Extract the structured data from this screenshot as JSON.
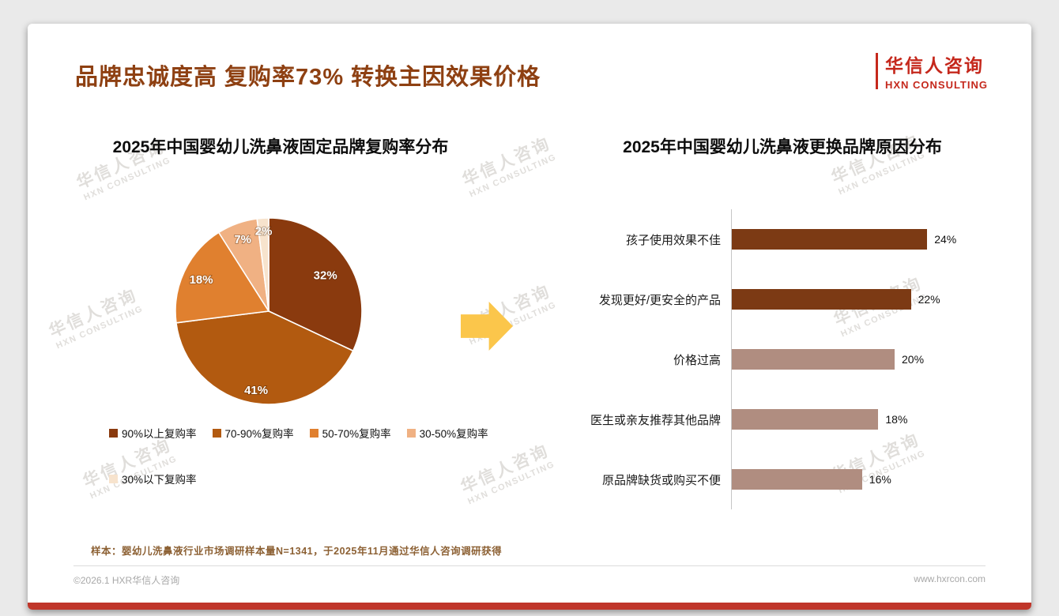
{
  "page": {
    "title": "品牌忠诚度高 复购率73% 转换主因效果价格"
  },
  "logo": {
    "name": "华信人咨询",
    "subtitle": "HXN CONSULTING"
  },
  "watermark": {
    "line1": "华信人咨询",
    "line2": "HXN CONSULTING"
  },
  "chart_data": [
    {
      "type": "pie",
      "title": "2025年中国婴幼儿洗鼻液固定品牌复购率分布",
      "labels": [
        "90%以上复购率",
        "70-90%复购率",
        "50-70%复购率",
        "30-50%复购率",
        "30%以下复购率"
      ],
      "values": [
        32,
        41,
        18,
        7,
        2
      ],
      "data_labels": [
        "32%",
        "41%",
        "18%",
        "7%",
        "2%"
      ],
      "colors": [
        "#8a3a0e",
        "#b25a10",
        "#e0802f",
        "#f0b183",
        "#f7e3cd"
      ],
      "legend_position": "bottom",
      "start_angle": "top",
      "direction": "clockwise"
    },
    {
      "type": "bar",
      "orientation": "horizontal",
      "title": "2025年中国婴幼儿洗鼻液更换品牌原因分布",
      "categories": [
        "孩子使用效果不佳",
        "发现更好/更安全的产品",
        "价格过高",
        "医生或亲友推荐其他品牌",
        "原品牌缺货或购买不便"
      ],
      "values": [
        24,
        22,
        20,
        18,
        16
      ],
      "value_labels": [
        "24%",
        "22%",
        "20%",
        "18%",
        "16%"
      ],
      "colors": [
        "#7c3a14",
        "#7c3a14",
        "#b08d80",
        "#b08d80",
        "#b08d80"
      ],
      "xlim": [
        0,
        26
      ],
      "grid": false
    }
  ],
  "footer": {
    "note": "样本：婴幼儿洗鼻液行业市场调研样本量N=1341，于2025年11月通过华信人咨询调研获得",
    "copyright": "©2026.1 HXR华信人咨询",
    "website": "www.hxrcon.com"
  },
  "colors": {
    "title": "#8e4012",
    "logo_red": "#c5281c",
    "bottom_bar": "#c0362a",
    "arrow": "#fbc64b"
  }
}
